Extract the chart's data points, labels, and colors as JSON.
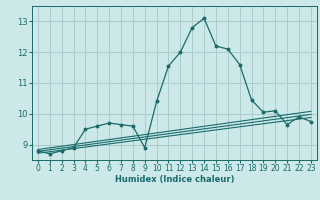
{
  "xlabel": "Humidex (Indice chaleur)",
  "background_color": "#cce8e8",
  "grid_color": "#aacccc",
  "line_color": "#1a6b6b",
  "x_data": [
    0,
    1,
    2,
    3,
    4,
    5,
    6,
    7,
    8,
    9,
    10,
    11,
    12,
    13,
    14,
    15,
    16,
    17,
    18,
    19,
    20,
    21,
    22,
    23
  ],
  "y_main": [
    8.8,
    8.7,
    8.8,
    8.9,
    9.5,
    9.6,
    9.7,
    9.65,
    9.6,
    8.9,
    10.4,
    11.55,
    12.0,
    12.8,
    13.1,
    12.2,
    12.1,
    11.6,
    10.45,
    10.05,
    10.1,
    9.65,
    9.9,
    9.75
  ],
  "ylim": [
    8.5,
    13.5
  ],
  "xlim": [
    -0.5,
    23.5
  ],
  "yticks": [
    9,
    10,
    11,
    12,
    13
  ],
  "xticks": [
    0,
    1,
    2,
    3,
    4,
    5,
    6,
    7,
    8,
    9,
    10,
    11,
    12,
    13,
    14,
    15,
    16,
    17,
    18,
    19,
    20,
    21,
    22,
    23
  ],
  "reg_lines": [
    [
      [
        0,
        23
      ],
      [
        8.72,
        9.88
      ]
    ],
    [
      [
        0,
        23
      ],
      [
        8.78,
        9.98
      ]
    ],
    [
      [
        0,
        23
      ],
      [
        8.84,
        10.08
      ]
    ]
  ]
}
